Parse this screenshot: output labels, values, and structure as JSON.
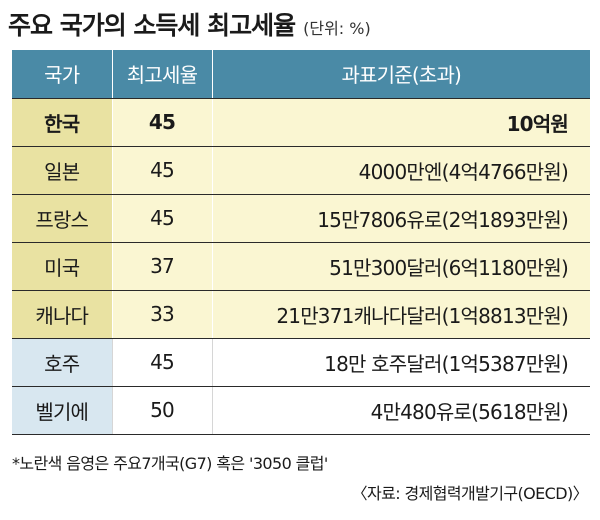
{
  "header": {
    "title": "주요 국가의 소득세 최고세율",
    "unit": "(단위: %)"
  },
  "table": {
    "columns": [
      "국가",
      "최고세율",
      "과표기준(초과)"
    ],
    "rows": [
      {
        "country": "한국",
        "rate": "45",
        "basis": "10억원",
        "group": "g7"
      },
      {
        "country": "일본",
        "rate": "45",
        "basis": "4000만엔(4억4766만원)",
        "group": "g7"
      },
      {
        "country": "프랑스",
        "rate": "45",
        "basis": "15만7806유로(2억1893만원)",
        "group": "g7"
      },
      {
        "country": "미국",
        "rate": "37",
        "basis": "51만300달러(6억1180만원)",
        "group": "g7"
      },
      {
        "country": "캐나다",
        "rate": "33",
        "basis": "21만371캐나다달러(1억8813만원)",
        "group": "g7"
      },
      {
        "country": "호주",
        "rate": "45",
        "basis": "18만 호주달러(1억5387만원)",
        "group": "other"
      },
      {
        "country": "벨기에",
        "rate": "50",
        "basis": "4만480유로(5618만원)",
        "group": "other"
      }
    ]
  },
  "footer": {
    "note": "*노란색 음영은 주요7개국(G7) 혹은 '3050 클럽'",
    "source": "〈자료: 경제협력개발기구(OECD)〉"
  },
  "colors": {
    "header_bg": "#4a8aa6",
    "g7_country_bg": "#e9e2a2",
    "g7_cell_bg": "#faf6d2",
    "other_country_bg": "#d8e7f0"
  }
}
